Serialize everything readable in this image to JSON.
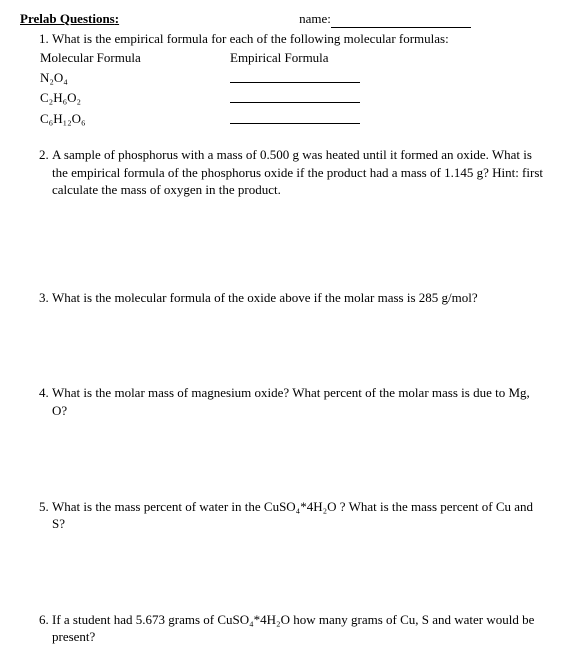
{
  "header": {
    "title": "Prelab Questions",
    "name_label": "name:"
  },
  "q1": {
    "text": "What is the empirical formula for each of the following molecular formulas:",
    "col_left": "Molecular Formula",
    "col_right": "Empirical Formula",
    "formula1": "N₂O₄",
    "formula2": "C₂H₆O₂",
    "formula3": "C₆H₁₂O₆"
  },
  "q2": {
    "text": "A sample of phosphorus with a mass of 0.500 g was heated until it formed an oxide. What is the empirical formula of the phosphorus oxide if the product had a mass of 1.145 g?  Hint: first calculate the mass of oxygen in the product."
  },
  "q3": {
    "text": "What is the molecular formula of the oxide above if the molar mass is 285 g/mol?"
  },
  "q4": {
    "text": "What is the molar mass of magnesium oxide? What percent of the molar mass is due to Mg, O?"
  },
  "q5": {
    "text": "What is the mass percent of water in the CuSO₄*4H₂O ? What is the mass percent of Cu and S?"
  },
  "q6": {
    "text": "If a student had 5.673 grams of CuSO₄*4H₂O how many grams of Cu, S and water would be present?"
  }
}
